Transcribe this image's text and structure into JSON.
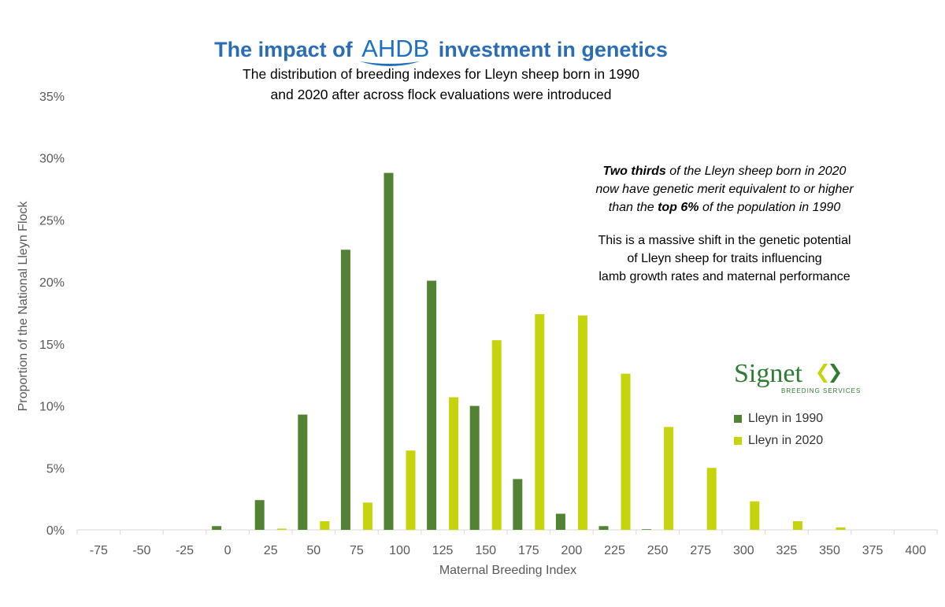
{
  "header": {
    "title_prefix": "The impact of",
    "title_logo": "AHDB",
    "title_suffix": "investment in genetics",
    "subtitle_line1": "The distribution of breeding indexes for Lleyn sheep born in 1990",
    "subtitle_line2": "and 2020 after across flock evaluations were introduced"
  },
  "annotation": {
    "italic_line1_bold": "Two thirds",
    "italic_line1_rest": " of the Lleyn sheep born in 2020",
    "italic_line2": "now have genetic merit equivalent to or higher",
    "italic_line3_pre": "than the ",
    "italic_line3_bold": "top 6%",
    "italic_line3_post": " of the population in 1990",
    "plain_line1": "This is a massive shift in the genetic potential",
    "plain_line2": "of Lleyn sheep for traits influencing",
    "plain_line3": "lamb growth rates and maternal performance"
  },
  "logo": {
    "name": "Signet",
    "tagline": "BREEDING SERVICES",
    "icon": "double-chevron-icon"
  },
  "colors": {
    "series_1990": "#548235",
    "series_2020": "#c5d40c",
    "title": "#2a6db5",
    "axis_text": "#595959",
    "logo_green": "#2e7d32"
  },
  "chart_data": {
    "type": "bar",
    "title": "",
    "xlabel": "Maternal Breeding Index",
    "ylabel": "Proportion of the National Lleyn Flock",
    "categories": [
      "-75",
      "-50",
      "-25",
      "0",
      "25",
      "50",
      "75",
      "100",
      "125",
      "150",
      "175",
      "200",
      "225",
      "250",
      "275",
      "300",
      "325",
      "350",
      "375",
      "400"
    ],
    "yticks": [
      "0%",
      "5%",
      "10%",
      "15%",
      "20%",
      "25%",
      "30%",
      "35%"
    ],
    "ylim": [
      0,
      35
    ],
    "legend_placement": "right",
    "series": [
      {
        "name": "Lleyn in 1990",
        "color": "#548235",
        "values": [
          0,
          0,
          0,
          0.3,
          2.4,
          9.3,
          22.6,
          28.8,
          20.1,
          10.0,
          4.1,
          1.3,
          0.3,
          0.05,
          0,
          0,
          0,
          0,
          0,
          0
        ]
      },
      {
        "name": "Lleyn in 2020",
        "color": "#c5d40c",
        "values": [
          0,
          0,
          0,
          0,
          0.1,
          0.7,
          2.2,
          6.4,
          10.7,
          15.3,
          17.4,
          17.3,
          12.6,
          8.3,
          5.0,
          2.3,
          0.7,
          0.2,
          0,
          0
        ]
      }
    ]
  }
}
